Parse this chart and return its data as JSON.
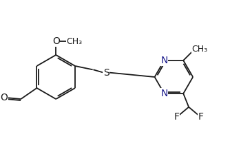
{
  "bg_color": "#ffffff",
  "bond_color": "#1a1a1a",
  "atom_colors": {
    "N": "#1a1a8b",
    "O": "#1a1a1a",
    "S": "#1a1a1a",
    "F": "#1a1a1a",
    "C": "#1a1a1a"
  },
  "font_size": 10,
  "fig_width": 3.5,
  "fig_height": 2.24,
  "dpi": 100
}
